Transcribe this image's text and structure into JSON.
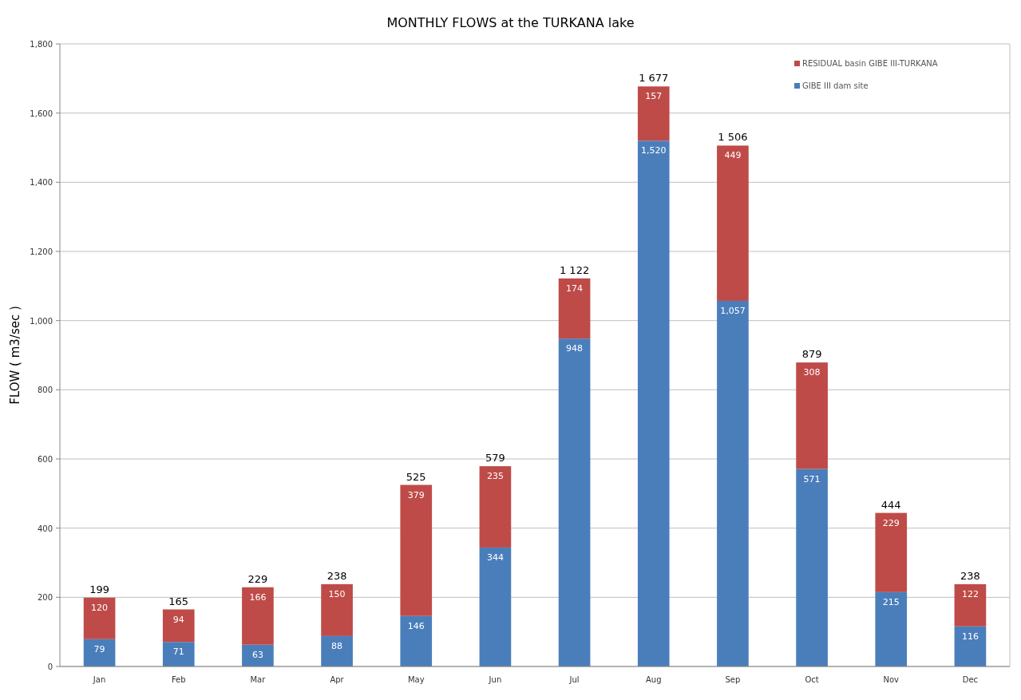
{
  "chart_data": {
    "type": "bar",
    "title": "MONTHLY FLOWS at the TURKANA lake",
    "ylabel": "FLOW ( m3/sec )",
    "categories": [
      "Jan",
      "Feb",
      "Mar",
      "Apr",
      "May",
      "Jun",
      "Jul",
      "Aug",
      "Sep",
      "Oct",
      "Nov",
      "Dec"
    ],
    "series": [
      {
        "name": "GIBE III dam site",
        "color": "#4a7ebb",
        "values": [
          79,
          71,
          63,
          88,
          146,
          344,
          948,
          1520,
          1057,
          571,
          215,
          116
        ],
        "value_labels": [
          "79",
          "71",
          "63",
          "88",
          "146",
          "344",
          "948",
          "1,520",
          "1,057",
          "571",
          "215",
          "116"
        ]
      },
      {
        "name": "RESIDUAL basin GIBE III-TURKANA",
        "color": "#be4b48",
        "values": [
          120,
          94,
          166,
          150,
          379,
          235,
          174,
          157,
          449,
          308,
          229,
          122
        ],
        "value_labels": [
          "120",
          "94",
          "166",
          "150",
          "379",
          "235",
          "174",
          "157",
          "449",
          "308",
          "229",
          "122"
        ]
      }
    ],
    "stacked": true,
    "totals": [
      "199",
      "165",
      "229",
      "238",
      "525",
      "579",
      "1 122",
      "1 677",
      "1 506",
      "879",
      "444",
      "238"
    ],
    "ylim": [
      0,
      1800
    ],
    "yticks": [
      {
        "value": 0,
        "label": "0"
      },
      {
        "value": 200,
        "label": "200"
      },
      {
        "value": 400,
        "label": "400"
      },
      {
        "value": 600,
        "label": "600"
      },
      {
        "value": 800,
        "label": "800"
      },
      {
        "value": 1000,
        "label": "1,000"
      },
      {
        "value": 1200,
        "label": "1,200"
      },
      {
        "value": 1400,
        "label": "1,400"
      },
      {
        "value": 1600,
        "label": "1,600"
      },
      {
        "value": 1800,
        "label": "1,800"
      }
    ],
    "grid": "y",
    "legend": "top right"
  }
}
